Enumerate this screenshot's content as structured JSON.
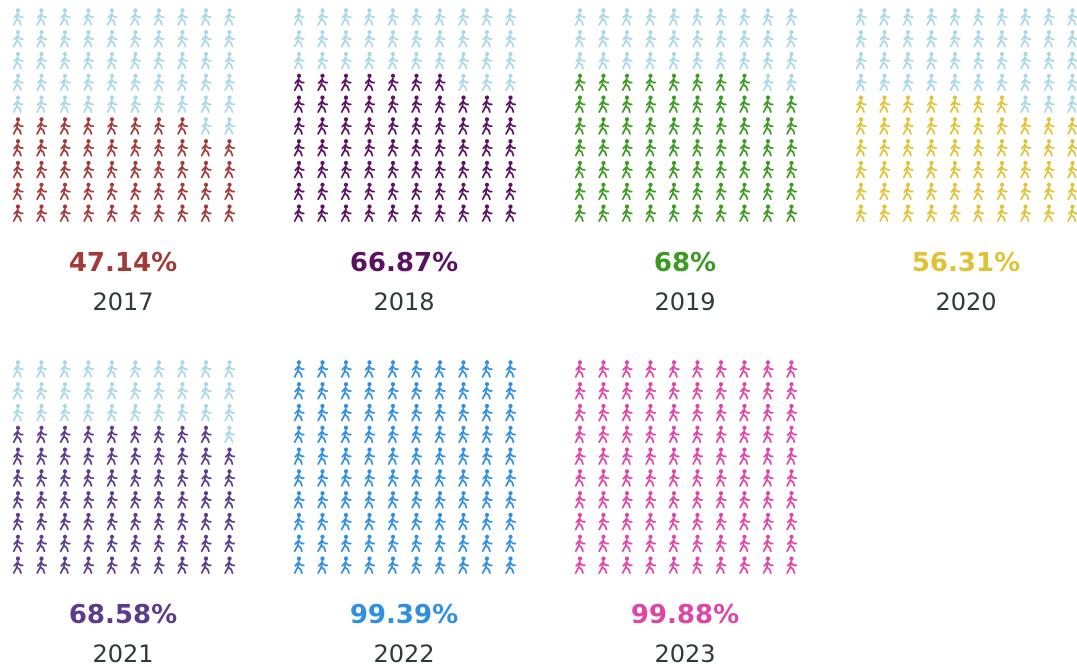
{
  "chart_data": {
    "type": "pictograph",
    "categories": [
      "2017",
      "2018",
      "2019",
      "2020",
      "2021",
      "2022",
      "2023"
    ],
    "values": [
      47.14,
      66.87,
      68,
      56.31,
      68.58,
      99.39,
      99.88
    ],
    "value_labels": [
      "47.14%",
      "66.87%",
      "68%",
      "56.31%",
      "68.58%",
      "99.39%",
      "99.88%"
    ],
    "colors": [
      "#a33a3a",
      "#5b1162",
      "#3c9a22",
      "#e1c236",
      "#5b3b8c",
      "#2f8fe2",
      "#e045a6"
    ],
    "empty_color": "#a9d8e6"
  }
}
